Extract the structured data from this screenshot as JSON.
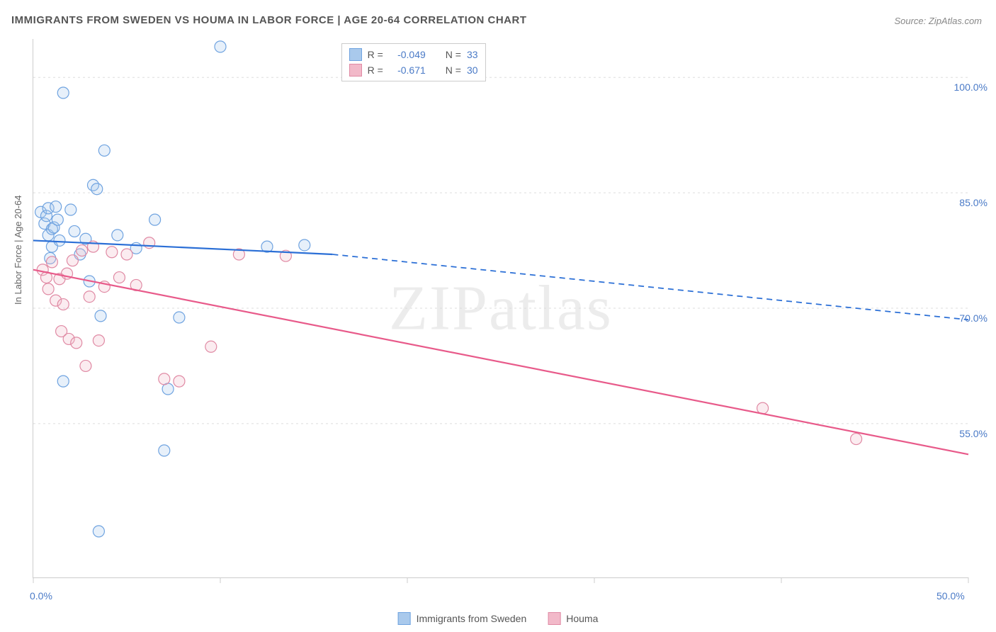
{
  "title": "IMMIGRANTS FROM SWEDEN VS HOUMA IN LABOR FORCE | AGE 20-64 CORRELATION CHART",
  "source": "Source: ZipAtlas.com",
  "watermark": "ZIPatlas",
  "ylabel": "In Labor Force | Age 20-64",
  "chart": {
    "type": "scatter",
    "background_color": "#ffffff",
    "grid_color": "#dddddd",
    "axis_color": "#cccccc",
    "xlim": [
      0.0,
      50.0
    ],
    "ylim": [
      35.0,
      105.0
    ],
    "x_ticks": [
      0.0,
      10.0,
      20.0,
      30.0,
      40.0,
      50.0
    ],
    "x_tick_labels": [
      "0.0%",
      "",
      "",
      "",
      "",
      "50.0%"
    ],
    "y_ticks": [
      55.0,
      70.0,
      85.0,
      100.0
    ],
    "y_tick_labels": [
      "55.0%",
      "70.0%",
      "85.0%",
      "100.0%"
    ],
    "marker_radius": 8,
    "marker_stroke_width": 1.2,
    "marker_fill_opacity": 0.28,
    "line_width": 2.2,
    "tick_label_color": "#4a7ac7",
    "axis_label_color": "#666666",
    "title_color": "#555555",
    "series": [
      {
        "name": "Immigrants from Sweden",
        "stroke": "#6fa3e0",
        "fill": "#a9c9ec",
        "line_color": "#2b6fd6",
        "R": "-0.049",
        "N": "33",
        "points": [
          [
            0.4,
            82.5
          ],
          [
            0.6,
            81.0
          ],
          [
            0.7,
            82.0
          ],
          [
            0.8,
            83.0
          ],
          [
            0.8,
            79.5
          ],
          [
            0.9,
            76.5
          ],
          [
            1.0,
            80.3
          ],
          [
            1.0,
            78.0
          ],
          [
            1.1,
            80.5
          ],
          [
            1.2,
            83.2
          ],
          [
            1.3,
            81.5
          ],
          [
            1.4,
            78.8
          ],
          [
            1.6,
            98.0
          ],
          [
            1.6,
            60.5
          ],
          [
            2.0,
            82.8
          ],
          [
            2.2,
            80.0
          ],
          [
            2.5,
            77.0
          ],
          [
            2.8,
            79.0
          ],
          [
            3.0,
            73.5
          ],
          [
            3.2,
            86.0
          ],
          [
            3.4,
            85.5
          ],
          [
            3.5,
            41.0
          ],
          [
            3.6,
            69.0
          ],
          [
            3.8,
            90.5
          ],
          [
            4.5,
            79.5
          ],
          [
            5.5,
            77.8
          ],
          [
            6.5,
            81.5
          ],
          [
            7.0,
            51.5
          ],
          [
            7.2,
            59.5
          ],
          [
            7.8,
            68.8
          ],
          [
            10.0,
            104.0
          ],
          [
            12.5,
            78.0
          ],
          [
            14.5,
            78.2
          ]
        ],
        "trend": {
          "x0": 0.0,
          "y0": 78.8,
          "x1_solid": 16.0,
          "y1_solid": 77.0,
          "x1": 50.0,
          "y1": 68.5
        }
      },
      {
        "name": "Houma",
        "stroke": "#e08aa4",
        "fill": "#f2b9c9",
        "line_color": "#e85a8a",
        "R": "-0.671",
        "N": "30",
        "points": [
          [
            0.5,
            75.0
          ],
          [
            0.7,
            74.0
          ],
          [
            0.8,
            72.5
          ],
          [
            1.0,
            76.0
          ],
          [
            1.2,
            71.0
          ],
          [
            1.4,
            73.8
          ],
          [
            1.5,
            67.0
          ],
          [
            1.6,
            70.5
          ],
          [
            1.8,
            74.5
          ],
          [
            1.9,
            66.0
          ],
          [
            2.1,
            76.2
          ],
          [
            2.3,
            65.5
          ],
          [
            2.6,
            77.5
          ],
          [
            2.8,
            62.5
          ],
          [
            3.0,
            71.5
          ],
          [
            3.2,
            78.0
          ],
          [
            3.5,
            65.8
          ],
          [
            3.8,
            72.8
          ],
          [
            4.2,
            77.3
          ],
          [
            4.6,
            74.0
          ],
          [
            5.0,
            77.0
          ],
          [
            5.5,
            73.0
          ],
          [
            6.2,
            78.5
          ],
          [
            7.0,
            60.8
          ],
          [
            7.8,
            60.5
          ],
          [
            9.5,
            65.0
          ],
          [
            11.0,
            77.0
          ],
          [
            13.5,
            76.8
          ],
          [
            39.0,
            57.0
          ],
          [
            44.0,
            53.0
          ]
        ],
        "trend": {
          "x0": 0.0,
          "y0": 75.0,
          "x1_solid": 50.0,
          "y1_solid": 51.0,
          "x1": 50.0,
          "y1": 51.0
        }
      }
    ],
    "legend_top": {
      "R_label": "R =",
      "N_label": "N =",
      "value_color": "#4a7ac7",
      "text_color": "#555555"
    },
    "legend_bottom": [
      {
        "label": "Immigrants from Sweden",
        "stroke": "#6fa3e0",
        "fill": "#a9c9ec"
      },
      {
        "label": "Houma",
        "stroke": "#e08aa4",
        "fill": "#f2b9c9"
      }
    ]
  }
}
